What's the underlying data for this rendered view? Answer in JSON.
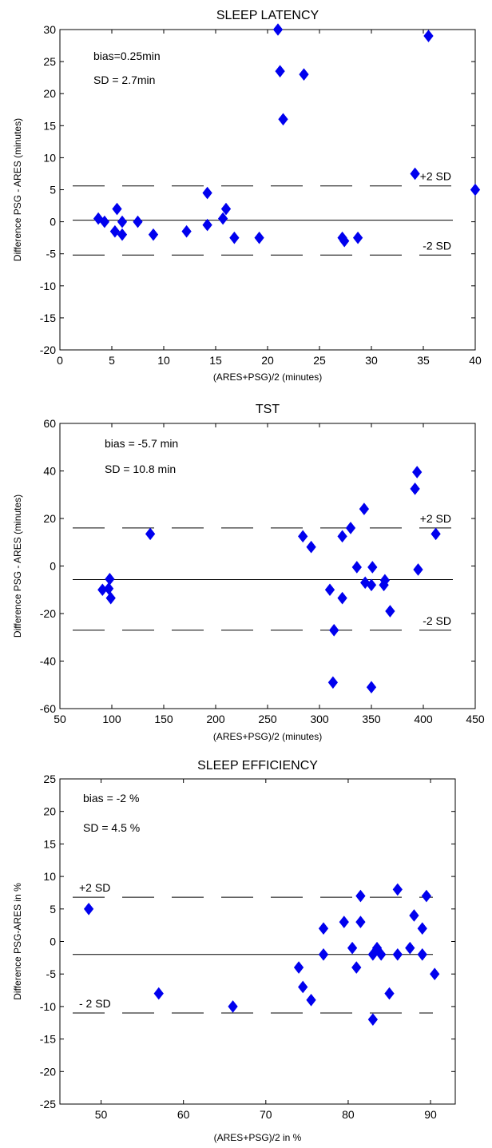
{
  "chart_data": [
    {
      "type": "scatter",
      "title": "SLEEP LATENCY",
      "xlabel": "(ARES+PSG)/2 (minutes)",
      "ylabel": "Difference PSG - ARES (minutes)",
      "xlim": [
        0,
        40
      ],
      "ylim": [
        -20,
        30
      ],
      "xticks": [
        0,
        5,
        10,
        15,
        20,
        25,
        30,
        35,
        40
      ],
      "yticks": [
        -20,
        -15,
        -10,
        -5,
        0,
        5,
        10,
        15,
        20,
        25,
        30
      ],
      "grid": false,
      "marker_color": "#0000ee",
      "reference_lines": [
        {
          "label": "+2 SD",
          "y": 5.6,
          "style": "dashed"
        },
        {
          "label": "",
          "y": 0.25,
          "style": "solid"
        },
        {
          "label": "-2 SD",
          "y": -5.2,
          "style": "dashed"
        }
      ],
      "annotations": [
        "bias=0.25min",
        "SD = 2.7min"
      ],
      "points": [
        {
          "x": 3.7,
          "y": 0.5
        },
        {
          "x": 4.3,
          "y": 0
        },
        {
          "x": 5.3,
          "y": -1.5
        },
        {
          "x": 5.5,
          "y": 2
        },
        {
          "x": 6.0,
          "y": 0
        },
        {
          "x": 6.0,
          "y": -2
        },
        {
          "x": 7.5,
          "y": 0
        },
        {
          "x": 9.0,
          "y": -2
        },
        {
          "x": 12.2,
          "y": -1.5
        },
        {
          "x": 14.2,
          "y": 4.5
        },
        {
          "x": 14.2,
          "y": -0.5
        },
        {
          "x": 15.7,
          "y": 0.5
        },
        {
          "x": 16.0,
          "y": 2
        },
        {
          "x": 16.8,
          "y": -2.5
        },
        {
          "x": 19.2,
          "y": -2.5
        },
        {
          "x": 21.0,
          "y": 30
        },
        {
          "x": 21.2,
          "y": 23.5
        },
        {
          "x": 21.5,
          "y": 16
        },
        {
          "x": 23.5,
          "y": 23
        },
        {
          "x": 27.2,
          "y": -2.5
        },
        {
          "x": 27.4,
          "y": -3
        },
        {
          "x": 28.7,
          "y": -2.5
        },
        {
          "x": 34.2,
          "y": 7.5
        },
        {
          "x": 35.5,
          "y": 29
        },
        {
          "x": 40.0,
          "y": 5
        }
      ]
    },
    {
      "type": "scatter",
      "title": "TST",
      "xlabel": "(ARES+PSG)/2  (minutes)",
      "ylabel": "Difference PSG - ARES (minutes)",
      "xlim": [
        50,
        450
      ],
      "ylim": [
        -60,
        60
      ],
      "xticks": [
        50,
        100,
        150,
        200,
        250,
        300,
        350,
        400,
        450
      ],
      "yticks": [
        -60,
        -40,
        -20,
        0,
        20,
        40,
        60
      ],
      "grid": false,
      "marker_color": "#0000ee",
      "reference_lines": [
        {
          "label": "+2 SD",
          "y": 16,
          "style": "dashed"
        },
        {
          "label": "",
          "y": -5.7,
          "style": "solid"
        },
        {
          "label": "-2 SD",
          "y": -27,
          "style": "dashed"
        }
      ],
      "annotations": [
        "bias = -5.7 min",
        "SD = 10.8 min"
      ],
      "points": [
        {
          "x": 91,
          "y": -10
        },
        {
          "x": 97,
          "y": -9.5
        },
        {
          "x": 98,
          "y": -5.5
        },
        {
          "x": 99,
          "y": -13.5
        },
        {
          "x": 137,
          "y": 13.5
        },
        {
          "x": 284,
          "y": 12.5
        },
        {
          "x": 292,
          "y": 8
        },
        {
          "x": 310,
          "y": -10
        },
        {
          "x": 313,
          "y": -49
        },
        {
          "x": 314,
          "y": -27
        },
        {
          "x": 322,
          "y": 12.5
        },
        {
          "x": 322,
          "y": -13.5
        },
        {
          "x": 330,
          "y": 16
        },
        {
          "x": 336,
          "y": -0.5
        },
        {
          "x": 343,
          "y": 24
        },
        {
          "x": 344,
          "y": -7
        },
        {
          "x": 350,
          "y": -51
        },
        {
          "x": 350,
          "y": -8
        },
        {
          "x": 351,
          "y": -0.5
        },
        {
          "x": 362,
          "y": -8
        },
        {
          "x": 363,
          "y": -6
        },
        {
          "x": 368,
          "y": -19
        },
        {
          "x": 392,
          "y": 32.5
        },
        {
          "x": 394,
          "y": 39.5
        },
        {
          "x": 395,
          "y": -1.5
        },
        {
          "x": 412,
          "y": 13.5
        }
      ]
    },
    {
      "type": "scatter",
      "title": "SLEEP EFFICIENCY",
      "xlabel": "(ARES+PSG)/2  in %",
      "ylabel": "Difference PSG-ARES in %",
      "xlim": [
        45,
        93
      ],
      "ylim": [
        -25,
        25
      ],
      "xticks": [
        50,
        60,
        70,
        80,
        90
      ],
      "yticks": [
        -25,
        -20,
        -15,
        -10,
        -5,
        0,
        5,
        10,
        15,
        20,
        25
      ],
      "grid": false,
      "marker_color": "#0000ee",
      "reference_lines": [
        {
          "label": "+2 SD",
          "y": 6.8,
          "style": "dashed"
        },
        {
          "label": "",
          "y": -2,
          "style": "solid"
        },
        {
          "label": "- 2 SD",
          "y": -11,
          "style": "dashed"
        }
      ],
      "annotations": [
        "bias = -2 %",
        "SD = 4.5 %"
      ],
      "points": [
        {
          "x": 48.5,
          "y": 5
        },
        {
          "x": 57,
          "y": -8
        },
        {
          "x": 66,
          "y": -10
        },
        {
          "x": 74,
          "y": -4
        },
        {
          "x": 74.5,
          "y": -7
        },
        {
          "x": 75.5,
          "y": -9
        },
        {
          "x": 77,
          "y": 2
        },
        {
          "x": 77,
          "y": -2
        },
        {
          "x": 79.5,
          "y": 3
        },
        {
          "x": 80.5,
          "y": -1
        },
        {
          "x": 81,
          "y": -4
        },
        {
          "x": 81.5,
          "y": 7
        },
        {
          "x": 81.5,
          "y": 3
        },
        {
          "x": 83,
          "y": -12
        },
        {
          "x": 83,
          "y": -2
        },
        {
          "x": 83.5,
          "y": -1
        },
        {
          "x": 84,
          "y": -2
        },
        {
          "x": 85,
          "y": -8
        },
        {
          "x": 86,
          "y": 8
        },
        {
          "x": 86,
          "y": -2
        },
        {
          "x": 87.5,
          "y": -1
        },
        {
          "x": 88,
          "y": 4
        },
        {
          "x": 89,
          "y": 2
        },
        {
          "x": 89,
          "y": -2
        },
        {
          "x": 89.5,
          "y": 7
        },
        {
          "x": 90.5,
          "y": -5
        }
      ]
    }
  ]
}
